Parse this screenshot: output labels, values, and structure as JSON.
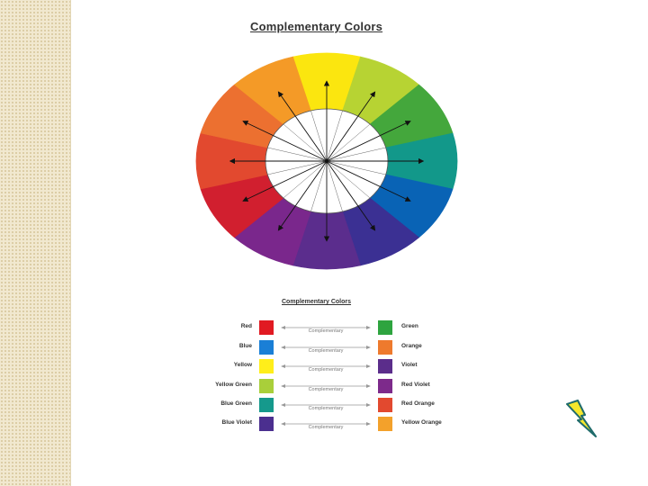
{
  "wheel_title": "Complementary Colors",
  "wheel_segments": [
    {
      "name": "yellow",
      "color": "#fbe60f"
    },
    {
      "name": "yellow-green",
      "color": "#b7d333"
    },
    {
      "name": "green",
      "color": "#44a73c"
    },
    {
      "name": "blue-green",
      "color": "#12988a"
    },
    {
      "name": "blue",
      "color": "#0963b5"
    },
    {
      "name": "blue-violet",
      "color": "#3b3093"
    },
    {
      "name": "violet",
      "color": "#5b2d8d"
    },
    {
      "name": "red-violet",
      "color": "#7a278c"
    },
    {
      "name": "red",
      "color": "#d11f2f"
    },
    {
      "name": "red-orange",
      "color": "#e2492f"
    },
    {
      "name": "orange",
      "color": "#ec7030"
    },
    {
      "name": "yellow-orange",
      "color": "#f49a27"
    }
  ],
  "legend": {
    "title": "Complementary Colors",
    "pairs": [
      {
        "left": "Red",
        "left_color": "#e11a22",
        "label": "Complementary",
        "right": "Green",
        "right_color": "#2ea43f"
      },
      {
        "left": "Blue",
        "left_color": "#1a7fd6",
        "label": "Complementary",
        "right": "Orange",
        "right_color": "#ee7a2d"
      },
      {
        "left": "Yellow",
        "left_color": "#ffee1a",
        "label": "Complementary",
        "right": "Violet",
        "right_color": "#5b2d8b"
      },
      {
        "left": "Yellow Green",
        "left_color": "#a9cf3a",
        "label": "Complementary",
        "right": "Red Violet",
        "right_color": "#7d2a8b"
      },
      {
        "left": "Blue Green",
        "left_color": "#15998c",
        "label": "Complementary",
        "right": "Red Orange",
        "right_color": "#e2492f"
      },
      {
        "left": "Blue Violet",
        "left_color": "#4b2f8f",
        "label": "Complementary",
        "right": "Yellow Orange",
        "right_color": "#f3a12b"
      }
    ]
  },
  "icon": "lightning-bolt-icon"
}
